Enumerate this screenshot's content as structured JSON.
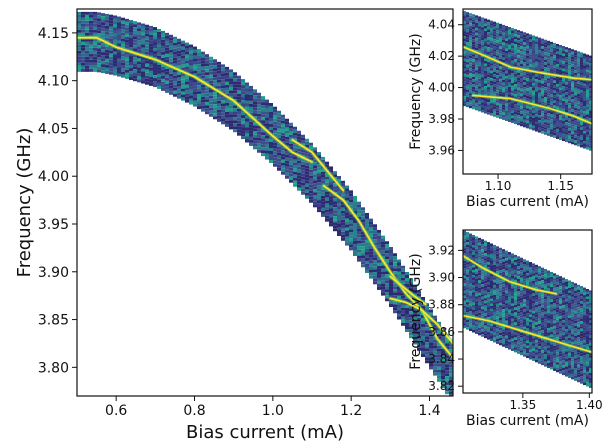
{
  "chart_data": [
    {
      "type": "heatmap",
      "title": "",
      "xlabel": "Bias current (mA)",
      "ylabel": "Frequency (GHz)",
      "xlim": [
        0.5,
        1.46
      ],
      "ylim": [
        3.77,
        4.175
      ],
      "xticks": [
        0.6,
        0.8,
        1.0,
        1.2,
        1.4
      ],
      "xtick_labels": [
        "0.6",
        "0.8",
        "1.0",
        "1.2",
        "1.4"
      ],
      "yticks": [
        3.8,
        3.85,
        3.9,
        3.95,
        4.0,
        4.05,
        4.1,
        4.15
      ],
      "ytick_labels": [
        "3.80",
        "3.85",
        "3.90",
        "3.95",
        "4.00",
        "4.05",
        "4.10",
        "4.15"
      ],
      "band_halfwidth_ghz": 0.03,
      "band_center": {
        "x": [
          0.5,
          0.55,
          0.6,
          0.7,
          0.8,
          0.9,
          1.0,
          1.1,
          1.2,
          1.3,
          1.4,
          1.46
        ],
        "y": [
          4.142,
          4.142,
          4.138,
          4.126,
          4.106,
          4.08,
          4.045,
          4.004,
          3.955,
          3.897,
          3.833,
          3.795
        ]
      },
      "series": [
        {
          "x": [
            0.5,
            0.55,
            0.6,
            0.7,
            0.8,
            0.9,
            1.0,
            1.05,
            1.1
          ],
          "y": [
            4.145,
            4.145,
            4.135,
            4.122,
            4.104,
            4.079,
            4.042,
            4.025,
            4.015
          ]
        },
        {
          "x": [
            1.05,
            1.1,
            1.15,
            1.18
          ],
          "y": [
            4.038,
            4.025,
            4.0,
            3.985
          ]
        },
        {
          "x": [
            1.13,
            1.18,
            1.22,
            1.26,
            1.3,
            1.34,
            1.38,
            1.42,
            1.46
          ],
          "y": [
            3.99,
            3.975,
            3.953,
            3.925,
            3.9,
            3.877,
            3.86,
            3.83,
            3.81
          ]
        },
        {
          "x": [
            1.3,
            1.33,
            1.36,
            1.39
          ],
          "y": [
            3.895,
            3.885,
            3.875,
            3.866
          ]
        },
        {
          "x": [
            1.3,
            1.34,
            1.38,
            1.42,
            1.46
          ],
          "y": [
            3.872,
            3.868,
            3.86,
            3.845,
            3.825
          ]
        }
      ]
    },
    {
      "type": "heatmap",
      "title": "",
      "xlabel": "Bias current (mA)",
      "ylabel": "Frequency (GHz)",
      "xlim": [
        1.072,
        1.175
      ],
      "ylim": [
        3.945,
        4.05
      ],
      "xticks": [
        1.1,
        1.15
      ],
      "xtick_labels": [
        "1.10",
        "1.15"
      ],
      "yticks": [
        3.96,
        3.98,
        4.0,
        4.02,
        4.04
      ],
      "ytick_labels": [
        "3.96",
        "3.98",
        "4.00",
        "4.02",
        "4.04"
      ],
      "band_halfwidth_ghz": 0.03,
      "band_center": {
        "x": [
          1.072,
          1.175
        ],
        "y": [
          4.019,
          3.99
        ]
      },
      "series": [
        {
          "x": [
            1.072,
            1.09,
            1.11,
            1.13,
            1.16,
            1.175
          ],
          "y": [
            4.026,
            4.02,
            4.013,
            4.01,
            4.006,
            4.005
          ]
        },
        {
          "x": [
            1.08,
            1.11,
            1.14,
            1.16,
            1.175
          ],
          "y": [
            3.995,
            3.993,
            3.987,
            3.982,
            3.977
          ]
        }
      ]
    },
    {
      "type": "heatmap",
      "title": "",
      "xlabel": "Bias current (mA)",
      "ylabel": "Frequency (GHz)",
      "xlim": [
        1.305,
        1.402
      ],
      "ylim": [
        3.815,
        3.935
      ],
      "xticks": [
        1.35,
        1.4
      ],
      "xtick_labels": [
        "1.35",
        "1.40"
      ],
      "yticks": [
        3.82,
        3.84,
        3.86,
        3.88,
        3.9,
        3.92
      ],
      "ytick_labels": [
        "3.82",
        "3.84",
        "3.86",
        "3.88",
        "3.90",
        "3.92"
      ],
      "band_halfwidth_ghz": 0.035,
      "band_center": {
        "x": [
          1.305,
          1.402
        ],
        "y": [
          3.9,
          3.855
        ]
      },
      "series": [
        {
          "x": [
            1.305,
            1.32,
            1.34,
            1.36,
            1.375
          ],
          "y": [
            3.916,
            3.907,
            3.897,
            3.891,
            3.888
          ]
        },
        {
          "x": [
            1.305,
            1.325,
            1.345,
            1.365,
            1.385,
            1.402
          ],
          "y": [
            3.872,
            3.868,
            3.862,
            3.856,
            3.85,
            3.845
          ]
        }
      ]
    }
  ],
  "colors": {
    "background_dark": "#2b2a6e",
    "mid_blue": "#33638d",
    "teal": "#21918c",
    "green": "#5ec962",
    "line_yellow": "#fde725",
    "axis": "#111111"
  }
}
